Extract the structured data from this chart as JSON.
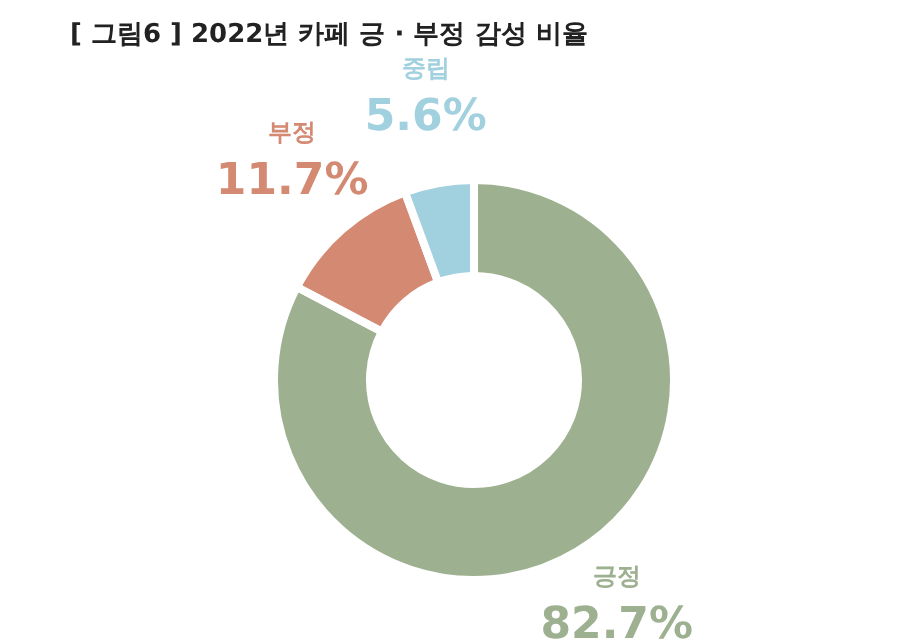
{
  "chart_data": {
    "type": "donut",
    "title": "[ 그림6 ] 2022년 카페 긍 · 부정 감성 비율",
    "categories": [
      "긍정",
      "부정",
      "중립"
    ],
    "values": [
      82.7,
      11.7,
      5.6
    ],
    "value_labels": [
      "82.7%",
      "11.7%",
      "5.6%"
    ],
    "colors": [
      "#9db090",
      "#d48a72",
      "#a1d0df"
    ],
    "legend": false
  }
}
